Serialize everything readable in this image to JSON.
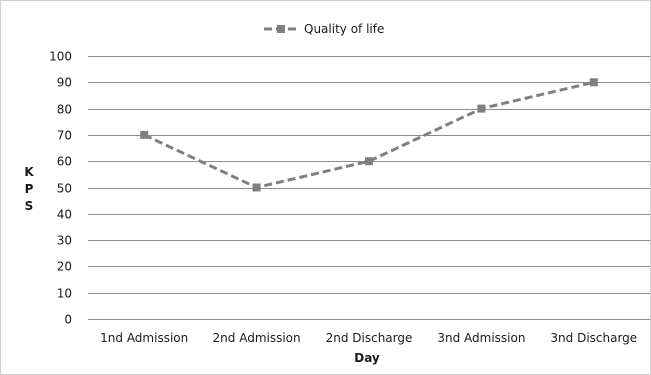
{
  "chart_data": {
    "type": "line",
    "categories": [
      "1nd Admission",
      "2nd Admission",
      "2nd Discharge",
      "3nd Admission",
      "3nd Discharge"
    ],
    "series": [
      {
        "name": "Quality of life",
        "values": [
          70,
          50,
          60,
          80,
          90
        ],
        "color": "#808080",
        "line_style": "dashed",
        "marker": "square"
      }
    ],
    "xlabel": "Day",
    "ylabel": "K P S",
    "ylim": [
      0,
      100
    ],
    "y_ticks": [
      "0",
      "10",
      "20",
      "30",
      "40",
      "50",
      "60",
      "70",
      "80",
      "90",
      "100"
    ],
    "grid": true,
    "legend_position": "top-center"
  }
}
